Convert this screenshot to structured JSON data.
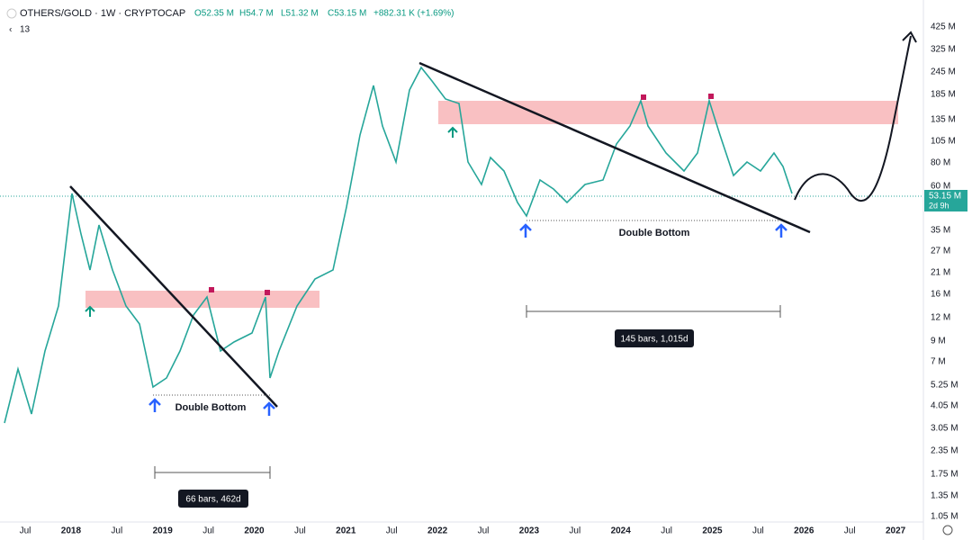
{
  "header": {
    "symbol": "OTHERS/GOLD · 1W · CRYPTOCAP",
    "open": "O52.35 M",
    "high": "H54.7 M",
    "low": "L51.32 M",
    "close": "C53.15 M",
    "change": "+882.31 K (+1.69%)",
    "indicators": "13"
  },
  "price_axis": [
    "425 M",
    "325 M",
    "245 M",
    "185 M",
    "135 M",
    "105 M",
    "80 M",
    "60 M",
    "35 M",
    "27 M",
    "21 M",
    "16 M",
    "12 M",
    "9 M",
    "7 M",
    "5.25 M",
    "4.05 M",
    "3.05 M",
    "2.35 M",
    "1.75 M",
    "1.35 M",
    "1.05 M"
  ],
  "price_tag": {
    "price": "53.15 M",
    "countdown": "2d 9h"
  },
  "time_axis": [
    "Jul",
    "2018",
    "Jul",
    "2019",
    "Jul",
    "2020",
    "Jul",
    "2021",
    "Jul",
    "2022",
    "Jul",
    "2023",
    "Jul",
    "2024",
    "Jul",
    "2025",
    "Jul",
    "2026",
    "Jul",
    "2027"
  ],
  "annotations": {
    "left_pattern": "Double Bottom",
    "right_pattern": "Double Bottom",
    "left_range": "66 bars, 462d",
    "right_range": "145 bars, 1,015d"
  }
}
